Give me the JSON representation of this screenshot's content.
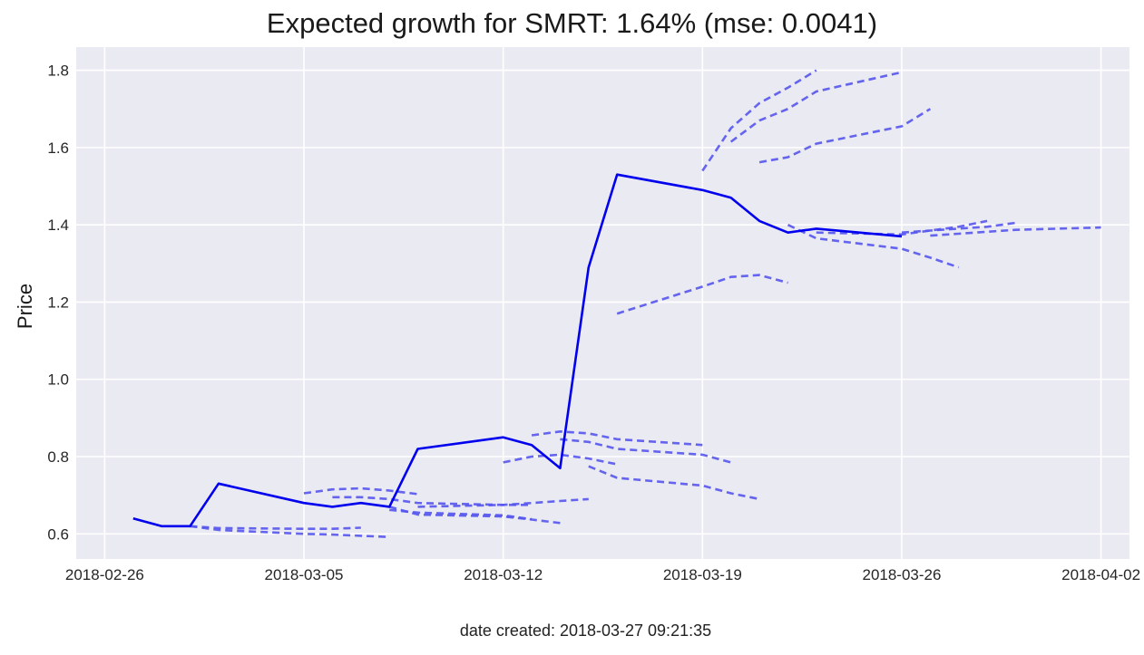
{
  "chart_data": {
    "type": "line",
    "title": "Expected growth for SMRT: 1.64% (mse: 0.0041)",
    "xlabel": "",
    "ylabel": "Price",
    "footer": "date created: 2018-03-27 09:21:35",
    "grid": true,
    "background": "#eaeaf2",
    "x_ticks": [
      "2018-02-26",
      "2018-03-05",
      "2018-03-12",
      "2018-03-19",
      "2018-03-26",
      "2018-04-02"
    ],
    "y_ticks": [
      0.6,
      0.8,
      1.0,
      1.2,
      1.4,
      1.6,
      1.8
    ],
    "xlim": [
      "2018-02-25",
      "2018-04-03"
    ],
    "ylim": [
      0.535,
      1.86
    ],
    "actual": {
      "color": "#0000ee",
      "dates": [
        "2018-02-27",
        "2018-02-28",
        "2018-03-01",
        "2018-03-02",
        "2018-03-05",
        "2018-03-06",
        "2018-03-07",
        "2018-03-08",
        "2018-03-09",
        "2018-03-12",
        "2018-03-13",
        "2018-03-14",
        "2018-03-15",
        "2018-03-16",
        "2018-03-19",
        "2018-03-20",
        "2018-03-21",
        "2018-03-22",
        "2018-03-23",
        "2018-03-26"
      ],
      "values": [
        0.64,
        0.62,
        0.62,
        0.73,
        0.68,
        0.67,
        0.68,
        0.67,
        0.82,
        0.85,
        0.83,
        0.77,
        1.29,
        1.53,
        1.49,
        1.47,
        1.41,
        1.38,
        1.39,
        1.37
      ]
    },
    "forecast_color": "#5555ee",
    "forecasts": [
      {
        "dates": [
          "2018-03-01",
          "2018-03-02",
          "2018-03-05",
          "2018-03-06",
          "2018-03-07"
        ],
        "values": [
          0.62,
          0.615,
          0.613,
          0.613,
          0.616
        ]
      },
      {
        "dates": [
          "2018-03-01",
          "2018-03-02",
          "2018-03-05",
          "2018-03-06",
          "2018-03-07",
          "2018-03-08"
        ],
        "values": [
          0.62,
          0.61,
          0.6,
          0.598,
          0.595,
          0.592
        ]
      },
      {
        "dates": [
          "2018-03-05",
          "2018-03-06",
          "2018-03-07",
          "2018-03-08",
          "2018-03-09"
        ],
        "values": [
          0.705,
          0.715,
          0.718,
          0.712,
          0.703
        ]
      },
      {
        "dates": [
          "2018-03-06",
          "2018-03-07",
          "2018-03-08",
          "2018-03-09",
          "2018-03-12",
          "2018-03-13"
        ],
        "values": [
          0.695,
          0.695,
          0.69,
          0.68,
          0.675,
          0.675
        ]
      },
      {
        "dates": [
          "2018-03-08",
          "2018-03-09",
          "2018-03-12",
          "2018-03-13",
          "2018-03-14"
        ],
        "values": [
          0.67,
          0.65,
          0.645,
          0.637,
          0.628
        ]
      },
      {
        "dates": [
          "2018-03-09",
          "2018-03-12",
          "2018-03-13",
          "2018-03-14",
          "2018-03-15"
        ],
        "values": [
          0.67,
          0.675,
          0.68,
          0.685,
          0.69
        ]
      },
      {
        "dates": [
          "2018-03-08",
          "2018-03-09",
          "2018-03-12",
          "2018-03-13"
        ],
        "values": [
          0.662,
          0.655,
          0.648,
          0.638
        ]
      },
      {
        "dates": [
          "2018-03-12",
          "2018-03-13",
          "2018-03-14",
          "2018-03-15",
          "2018-03-16"
        ],
        "values": [
          0.785,
          0.8,
          0.805,
          0.795,
          0.78
        ]
      },
      {
        "dates": [
          "2018-03-13",
          "2018-03-14",
          "2018-03-15",
          "2018-03-16",
          "2018-03-19"
        ],
        "values": [
          0.855,
          0.865,
          0.86,
          0.845,
          0.83
        ]
      },
      {
        "dates": [
          "2018-03-14",
          "2018-03-15",
          "2018-03-16",
          "2018-03-19",
          "2018-03-20"
        ],
        "values": [
          0.845,
          0.838,
          0.82,
          0.805,
          0.785
        ]
      },
      {
        "dates": [
          "2018-03-15",
          "2018-03-16",
          "2018-03-19",
          "2018-03-20",
          "2018-03-21"
        ],
        "values": [
          0.775,
          0.745,
          0.725,
          0.705,
          0.69
        ]
      },
      {
        "dates": [
          "2018-03-16",
          "2018-03-19",
          "2018-03-20",
          "2018-03-21",
          "2018-03-22"
        ],
        "values": [
          1.17,
          1.24,
          1.265,
          1.27,
          1.25
        ]
      },
      {
        "dates": [
          "2018-03-19",
          "2018-03-20",
          "2018-03-21",
          "2018-03-22",
          "2018-03-23"
        ],
        "values": [
          1.54,
          1.65,
          1.715,
          1.755,
          1.8
        ]
      },
      {
        "dates": [
          "2018-03-20",
          "2018-03-21",
          "2018-03-22",
          "2018-03-23",
          "2018-03-26"
        ],
        "values": [
          1.615,
          1.67,
          1.7,
          1.745,
          1.795
        ]
      },
      {
        "dates": [
          "2018-03-21",
          "2018-03-22",
          "2018-03-23",
          "2018-03-26",
          "2018-03-27"
        ],
        "values": [
          1.562,
          1.575,
          1.61,
          1.655,
          1.7
        ]
      },
      {
        "dates": [
          "2018-03-22",
          "2018-03-23",
          "2018-03-26",
          "2018-03-27",
          "2018-03-28"
        ],
        "values": [
          1.4,
          1.365,
          1.338,
          1.315,
          1.29
        ]
      },
      {
        "dates": [
          "2018-03-23",
          "2018-03-26",
          "2018-03-27",
          "2018-03-28",
          "2018-03-29"
        ],
        "values": [
          1.38,
          1.375,
          1.385,
          1.395,
          1.41
        ]
      },
      {
        "dates": [
          "2018-03-26",
          "2018-03-27",
          "2018-03-28",
          "2018-03-29",
          "2018-03-30"
        ],
        "values": [
          1.38,
          1.385,
          1.39,
          1.395,
          1.405
        ]
      },
      {
        "dates": [
          "2018-03-27",
          "2018-03-28",
          "2018-03-29",
          "2018-03-30",
          "2018-04-02"
        ],
        "values": [
          1.372,
          1.377,
          1.382,
          1.387,
          1.393
        ]
      }
    ]
  }
}
